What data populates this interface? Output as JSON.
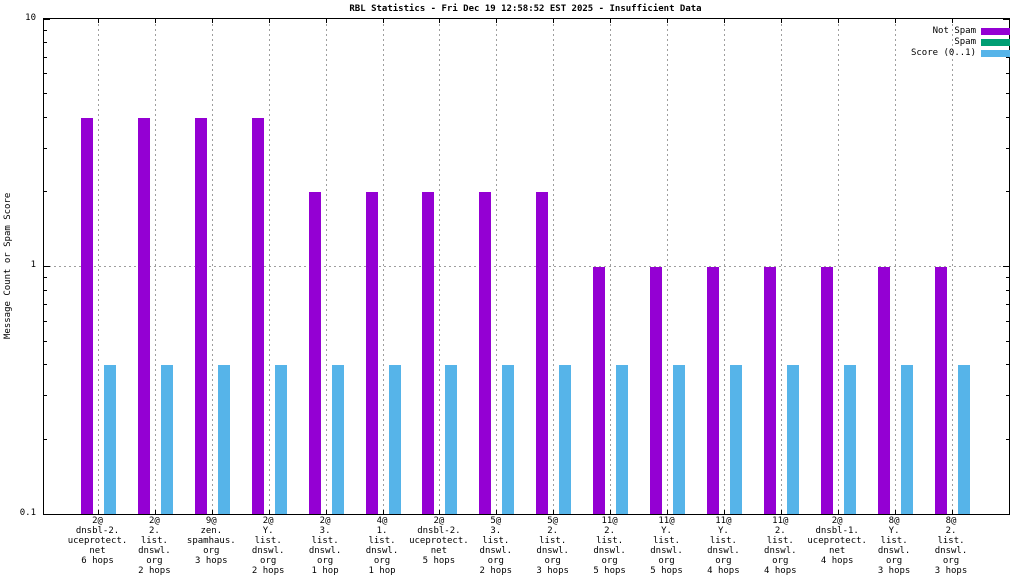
{
  "title": "RBL Statistics - Fri Dec 19 12:58:52 EST 2025 - Insufficient Data",
  "colors": {
    "not_spam": "#9400D3",
    "spam": "#009E73",
    "score": "#56B4E9",
    "grid": "#9E9E9E",
    "border": "#000000",
    "background": "#FFFFFF"
  },
  "legend": [
    {
      "label": "Not Spam",
      "color": "#9400D3"
    },
    {
      "label": "Spam",
      "color": "#009E73"
    },
    {
      "label": "Score (0..1)",
      "color": "#56B4E9"
    }
  ],
  "y_axis": {
    "label": "Message Count or Spam Score",
    "scale": "log",
    "min": 0.1,
    "max": 10,
    "major_ticks": [
      {
        "label": "10",
        "value": 10
      },
      {
        "label": "1",
        "value": 1
      },
      {
        "label": "0.1",
        "value": 0.1
      }
    ]
  },
  "chart_data": {
    "type": "bar",
    "title": "RBL Statistics - Fri Dec 19 12:58:52 EST 2025 - Insufficient Data",
    "xlabel": "",
    "ylabel": "Message Count or Spam Score",
    "yscale": "log",
    "ylim": [
      0.1,
      10
    ],
    "grid": true,
    "legend_position": "top-right",
    "categories": [
      [
        "2@",
        "dnsbl-2.",
        "uceprotect.",
        "net",
        "6 hops"
      ],
      [
        "2@",
        "2.",
        "list.",
        "dnswl.",
        "org",
        "2 hops"
      ],
      [
        "9@",
        "zen.",
        "spamhaus.",
        "org",
        "3 hops"
      ],
      [
        "2@",
        "Y.",
        "list.",
        "dnswl.",
        "org",
        "2 hops"
      ],
      [
        "2@",
        "3.",
        "list.",
        "dnswl.",
        "org",
        "1 hop"
      ],
      [
        "4@",
        "1.",
        "list.",
        "dnswl.",
        "org",
        "1 hop"
      ],
      [
        "2@",
        "dnsbl-2.",
        "uceprotect.",
        "net",
        "5 hops"
      ],
      [
        "5@",
        "3.",
        "list.",
        "dnswl.",
        "org",
        "2 hops"
      ],
      [
        "5@",
        "2.",
        "list.",
        "dnswl.",
        "org",
        "3 hops"
      ],
      [
        "11@",
        "2.",
        "list.",
        "dnswl.",
        "org",
        "5 hops"
      ],
      [
        "11@",
        "Y.",
        "list.",
        "dnswl.",
        "org",
        "5 hops"
      ],
      [
        "11@",
        "Y.",
        "list.",
        "dnswl.",
        "org",
        "4 hops"
      ],
      [
        "11@",
        "2.",
        "list.",
        "dnswl.",
        "org",
        "4 hops"
      ],
      [
        "2@",
        "dnsbl-1.",
        "uceprotect.",
        "net",
        "4 hops"
      ],
      [
        "8@",
        "Y.",
        "list.",
        "dnswl.",
        "org",
        "3 hops"
      ],
      [
        "8@",
        "2.",
        "list.",
        "dnswl.",
        "org",
        "3 hops"
      ]
    ],
    "series": [
      {
        "name": "Not Spam",
        "color": "#9400D3",
        "values": [
          4,
          4,
          4,
          4,
          2,
          2,
          2,
          2,
          2,
          1,
          1,
          1,
          1,
          1,
          1,
          1
        ]
      },
      {
        "name": "Spam",
        "color": "#009E73",
        "values": [
          0,
          0,
          0,
          0,
          0,
          0,
          0,
          0,
          0,
          0,
          0,
          0,
          0,
          0,
          0,
          0
        ]
      },
      {
        "name": "Score (0..1)",
        "color": "#56B4E9",
        "values": [
          0.4,
          0.4,
          0.4,
          0.4,
          0.4,
          0.4,
          0.4,
          0.4,
          0.4,
          0.4,
          0.4,
          0.4,
          0.4,
          0.4,
          0.4,
          0.4
        ]
      }
    ]
  }
}
